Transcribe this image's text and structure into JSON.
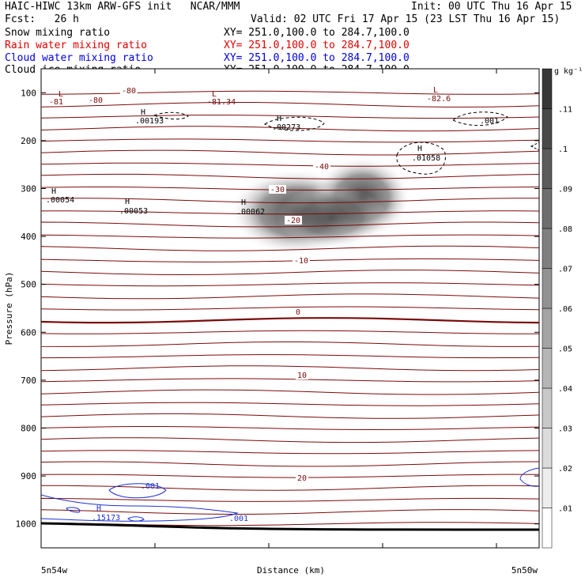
{
  "header": {
    "title": "HAIC-HIWC 13km ARW-GFS init   NCAR/MMM",
    "init": "Init: 00 UTC Thu 16 Apr 15",
    "fcst": "Fcst:   26 h",
    "valid": "Valid: 02 UTC Fri 17 Apr 15 (23 LST Thu 16 Apr 15)"
  },
  "fields": [
    {
      "name": "Snow mixing ratio",
      "xy": "XY= 251.0,100.0 to 284.7,100.0",
      "color": "#000000"
    },
    {
      "name": "Rain water mixing ratio",
      "xy": "XY= 251.0,100.0 to 284.7,100.0",
      "color": "#e00000"
    },
    {
      "name": "Cloud water mixing ratio",
      "xy": "XY= 251.0,100.0 to 284.7,100.0",
      "color": "#0000e0"
    },
    {
      "name": "Cloud ice mixing ratio",
      "xy": "XY= 251.0,100.0 to 284.7,100.0",
      "color": "#000000"
    }
  ],
  "colors": {
    "temperature": "#7a0a0a",
    "cloud_water": "#1e32d2",
    "cloud_ice": "#000000",
    "ground": "#000000"
  },
  "chart_data": {
    "type": "heatmap",
    "xlabel": "Distance (km)",
    "ylabel": "Pressure (hPa)",
    "x_tick_labels": [
      "5n54w",
      "5n50w"
    ],
    "y_ticks": [
      100,
      200,
      300,
      400,
      500,
      600,
      700,
      800,
      900,
      1000
    ],
    "ylim": [
      1050,
      50
    ],
    "colorbar": {
      "unit": "g kg⁻¹",
      "levels": [
        ".01",
        ".02",
        ".03",
        ".04",
        ".05",
        ".06",
        ".07",
        ".08",
        ".09",
        ".1",
        ".11"
      ]
    },
    "temperature_labels": [
      "-80",
      "-40",
      "-30",
      "-20",
      "-10",
      "0",
      "10",
      "20"
    ],
    "extrema": [
      {
        "type": "L",
        "value": "-81"
      },
      {
        "type": "L",
        "value": "-81.34"
      },
      {
        "type": "L",
        "value": "-82.6"
      },
      {
        "type": "H",
        "value": ".00193"
      },
      {
        "type": "H",
        "value": ".00273"
      },
      {
        "type": "H",
        "value": ".01058"
      },
      {
        "type": "H",
        "value": ".00054"
      },
      {
        "type": "H",
        "value": ".00053"
      },
      {
        "type": "H",
        "value": ".00062"
      },
      {
        "type": "H",
        "value": ".15173"
      }
    ],
    "cloud_ice_labels": [
      ".001"
    ],
    "cloud_water_labels": [
      ".001",
      ".001"
    ],
    "snow_max": 0.11
  }
}
